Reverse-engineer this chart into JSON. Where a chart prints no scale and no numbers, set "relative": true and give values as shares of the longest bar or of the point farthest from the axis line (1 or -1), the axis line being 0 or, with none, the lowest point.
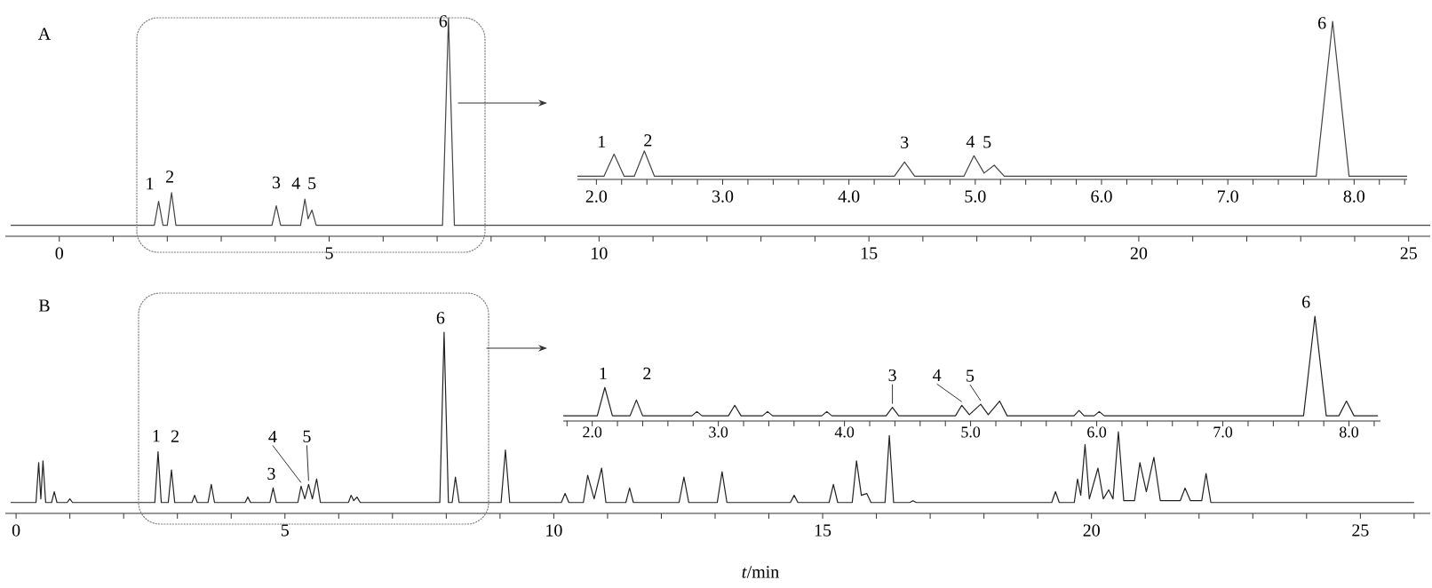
{
  "chart_data": [
    {
      "type": "line",
      "title": "A",
      "relative": true,
      "color": "#444444",
      "xlim": [
        -1,
        25.4
      ],
      "xticks": [
        0,
        {
          "value": 1,
          "label": null
        },
        {
          "value": 2,
          "label": null
        },
        {
          "value": 3,
          "label": null
        },
        {
          "value": 4,
          "label": null
        },
        5,
        {
          "value": 6,
          "label": null
        },
        {
          "value": 7,
          "label": null
        },
        {
          "value": 8,
          "label": null
        },
        {
          "value": 9,
          "label": null
        },
        10,
        {
          "value": 11,
          "label": null
        },
        {
          "value": 12,
          "label": null
        },
        {
          "value": 13,
          "label": null
        },
        {
          "value": 14,
          "label": null
        },
        15,
        {
          "value": 16,
          "label": null
        },
        {
          "value": 17,
          "label": null
        },
        {
          "value": 18,
          "label": null
        },
        {
          "value": 19,
          "label": null
        },
        20,
        {
          "value": 21,
          "label": null
        },
        {
          "value": 22,
          "label": null
        },
        {
          "value": 23,
          "label": null
        },
        {
          "value": 24,
          "label": null
        },
        25
      ],
      "x": [
        -0.9,
        1.76,
        1.84,
        1.92,
        2.0,
        2.08,
        2.16,
        3.94,
        4.02,
        4.1,
        4.47,
        4.55,
        4.61,
        4.68,
        4.76,
        7.1,
        7.21,
        7.32,
        25.4
      ],
      "values": [
        0.05,
        0.05,
        0.16,
        0.05,
        0.05,
        0.2,
        0.05,
        0.05,
        0.14,
        0.05,
        0.05,
        0.17,
        0.08,
        0.12,
        0.05,
        0.05,
        1.0,
        0.05,
        0.05
      ],
      "annotations": [
        {
          "text": "1",
          "x": 1.84,
          "y": 0.16
        },
        {
          "text": "2",
          "x": 2.08,
          "y": 0.2
        },
        {
          "text": "3",
          "x": 4.02,
          "y": 0.14
        },
        {
          "text": "4",
          "x": 4.55,
          "y": 0.17
        },
        {
          "text": "5",
          "x": 4.68,
          "y": 0.12
        },
        {
          "text": "6",
          "x": 7.21,
          "y": 1.0
        }
      ]
    },
    {
      "type": "line",
      "relative": true,
      "color": "#444444",
      "xlim": [
        1.85,
        8.42
      ],
      "xticks": [
        {
          "value": 2.0,
          "label": "2.0"
        },
        {
          "value": 2.2,
          "label": null
        },
        {
          "value": 2.4,
          "label": null
        },
        {
          "value": 2.6,
          "label": null
        },
        {
          "value": 2.8,
          "label": null
        },
        {
          "value": 3.0,
          "label": "3.0"
        },
        {
          "value": 3.2,
          "label": null
        },
        {
          "value": 3.4,
          "label": null
        },
        {
          "value": 3.6,
          "label": null
        },
        {
          "value": 3.8,
          "label": null
        },
        {
          "value": 4.0,
          "label": "4.0"
        },
        {
          "value": 4.2,
          "label": null
        },
        {
          "value": 4.4,
          "label": null
        },
        {
          "value": 4.6,
          "label": null
        },
        {
          "value": 4.8,
          "label": null
        },
        {
          "value": 5.0,
          "label": "5.0"
        },
        {
          "value": 5.2,
          "label": null
        },
        {
          "value": 5.4,
          "label": null
        },
        {
          "value": 5.6,
          "label": null
        },
        {
          "value": 5.8,
          "label": null
        },
        {
          "value": 6.0,
          "label": "6.0"
        },
        {
          "value": 6.2,
          "label": null
        },
        {
          "value": 6.4,
          "label": null
        },
        {
          "value": 6.6,
          "label": null
        },
        {
          "value": 6.8,
          "label": null
        },
        {
          "value": 7.0,
          "label": "7.0"
        },
        {
          "value": 7.2,
          "label": null
        },
        {
          "value": 7.4,
          "label": null
        },
        {
          "value": 7.6,
          "label": null
        },
        {
          "value": 7.8,
          "label": null
        },
        {
          "value": 8.0,
          "label": "8.0"
        },
        {
          "value": 8.2,
          "label": null
        },
        {
          "value": 8.4,
          "label": null
        }
      ],
      "x": [
        1.85,
        2.06,
        2.14,
        2.22,
        2.3,
        2.38,
        2.46,
        4.36,
        4.44,
        4.52,
        4.91,
        4.99,
        5.07,
        5.15,
        5.23,
        7.7,
        7.83,
        7.96,
        8.42
      ],
      "values": [
        0.02,
        0.02,
        0.16,
        0.02,
        0.02,
        0.18,
        0.02,
        0.02,
        0.11,
        0.02,
        0.02,
        0.15,
        0.04,
        0.09,
        0.02,
        0.02,
        1.0,
        0.02,
        0.02
      ],
      "annotations": [
        {
          "text": "1",
          "x": 2.14,
          "y": 0.16
        },
        {
          "text": "2",
          "x": 2.38,
          "y": 0.18
        },
        {
          "text": "3",
          "x": 4.44,
          "y": 0.11
        },
        {
          "text": "4",
          "x": 4.99,
          "y": 0.15
        },
        {
          "text": "5",
          "x": 5.15,
          "y": 0.09
        },
        {
          "text": "6",
          "x": 7.83,
          "y": 1.0
        }
      ]
    },
    {
      "type": "line",
      "title": "B",
      "xlabel": "*t*/min",
      "relative": true,
      "color": "#222222",
      "xlim": [
        -0.2,
        26.3
      ],
      "xticks": [
        0,
        {
          "value": 1,
          "label": null
        },
        {
          "value": 2,
          "label": null
        },
        {
          "value": 3,
          "label": null
        },
        {
          "value": 4,
          "label": null
        },
        5,
        {
          "value": 6,
          "label": null
        },
        {
          "value": 7,
          "label": null
        },
        {
          "value": 8,
          "label": null
        },
        {
          "value": 9,
          "label": null
        },
        10,
        {
          "value": 11,
          "label": null
        },
        {
          "value": 12,
          "label": null
        },
        {
          "value": 13,
          "label": null
        },
        {
          "value": 14,
          "label": null
        },
        15,
        {
          "value": 16,
          "label": null
        },
        {
          "value": 17,
          "label": null
        },
        {
          "value": 18,
          "label": null
        },
        {
          "value": 19,
          "label": null
        },
        20,
        {
          "value": 21,
          "label": null
        },
        {
          "value": 22,
          "label": null
        },
        {
          "value": 23,
          "label": null
        },
        {
          "value": 24,
          "label": null
        },
        25,
        {
          "value": 26,
          "label": null
        }
      ],
      "x": [
        -0.1,
        0.37,
        0.42,
        0.46,
        0.5,
        0.55,
        0.66,
        0.71,
        0.76,
        0.95,
        1.0,
        1.05,
        2.58,
        2.64,
        2.7,
        2.83,
        2.89,
        2.95,
        3.27,
        3.32,
        3.37,
        3.57,
        3.63,
        3.69,
        4.26,
        4.31,
        4.36,
        4.72,
        4.78,
        4.84,
        5.24,
        5.3,
        5.37,
        5.44,
        5.51,
        5.59,
        5.66,
        6.18,
        6.23,
        6.28,
        6.34,
        6.4,
        7.88,
        7.96,
        8.04,
        8.11,
        8.17,
        8.24,
        9.02,
        9.1,
        9.18,
        10.14,
        10.21,
        10.28,
        10.55,
        10.63,
        10.75,
        10.89,
        10.97,
        11.34,
        11.41,
        11.48,
        12.33,
        12.42,
        12.51,
        13.04,
        13.13,
        13.22,
        14.4,
        14.47,
        14.54,
        15.12,
        15.2,
        15.28,
        15.55,
        15.63,
        15.72,
        15.82,
        15.9,
        16.16,
        16.24,
        16.32,
        16.62,
        16.68,
        16.74,
        19.26,
        19.33,
        19.4,
        19.68,
        19.74,
        19.8,
        19.88,
        19.96,
        20.12,
        20.22,
        20.32,
        20.4,
        20.5,
        20.6,
        20.8,
        20.9,
        21.02,
        21.16,
        21.28,
        21.65,
        21.74,
        21.84,
        22.05,
        22.13,
        22.22,
        26.0
      ],
      "values": [
        0.06,
        0.06,
        0.28,
        0.08,
        0.29,
        0.06,
        0.06,
        0.12,
        0.06,
        0.06,
        0.08,
        0.06,
        0.06,
        0.34,
        0.06,
        0.06,
        0.24,
        0.06,
        0.06,
        0.1,
        0.06,
        0.06,
        0.16,
        0.06,
        0.06,
        0.09,
        0.06,
        0.06,
        0.14,
        0.06,
        0.06,
        0.15,
        0.08,
        0.16,
        0.08,
        0.19,
        0.06,
        0.06,
        0.1,
        0.07,
        0.09,
        0.06,
        0.06,
        1.0,
        0.06,
        0.06,
        0.2,
        0.06,
        0.06,
        0.35,
        0.06,
        0.06,
        0.11,
        0.06,
        0.06,
        0.21,
        0.08,
        0.25,
        0.06,
        0.06,
        0.14,
        0.06,
        0.06,
        0.2,
        0.06,
        0.06,
        0.23,
        0.06,
        0.06,
        0.1,
        0.06,
        0.06,
        0.16,
        0.06,
        0.06,
        0.29,
        0.1,
        0.11,
        0.06,
        0.06,
        0.43,
        0.06,
        0.06,
        0.07,
        0.06,
        0.06,
        0.12,
        0.06,
        0.06,
        0.19,
        0.1,
        0.38,
        0.08,
        0.25,
        0.08,
        0.13,
        0.08,
        0.45,
        0.07,
        0.07,
        0.28,
        0.12,
        0.31,
        0.07,
        0.07,
        0.14,
        0.07,
        0.07,
        0.22,
        0.06,
        0.06
      ],
      "annotations": [
        {
          "text": "1",
          "x": 2.64,
          "y": 0.34
        },
        {
          "text": "2",
          "x": 2.89,
          "y": 0.24
        },
        {
          "text": "3",
          "x": 4.78,
          "y": 0.14
        },
        {
          "text": "4",
          "x": 5.3,
          "y": 0.15
        },
        {
          "text": "5",
          "x": 5.44,
          "y": 0.16
        },
        {
          "text": "6",
          "x": 7.96,
          "y": 1.0
        }
      ]
    },
    {
      "type": "line",
      "relative": true,
      "color": "#222222",
      "xlim": [
        1.77,
        8.25
      ],
      "xticks": [
        {
          "value": 1.8,
          "label": null
        },
        {
          "value": 2.0,
          "label": "2.0"
        },
        {
          "value": 2.2,
          "label": null
        },
        {
          "value": 2.4,
          "label": null
        },
        {
          "value": 2.6,
          "label": null
        },
        {
          "value": 2.8,
          "label": null
        },
        {
          "value": 3.0,
          "label": "3.0"
        },
        {
          "value": 3.2,
          "label": null
        },
        {
          "value": 3.4,
          "label": null
        },
        {
          "value": 3.6,
          "label": null
        },
        {
          "value": 3.8,
          "label": null
        },
        {
          "value": 4.0,
          "label": "4.0"
        },
        {
          "value": 4.2,
          "label": null
        },
        {
          "value": 4.4,
          "label": null
        },
        {
          "value": 4.6,
          "label": null
        },
        {
          "value": 4.8,
          "label": null
        },
        {
          "value": 5.0,
          "label": "5.0"
        },
        {
          "value": 5.2,
          "label": null
        },
        {
          "value": 5.4,
          "label": null
        },
        {
          "value": 5.6,
          "label": null
        },
        {
          "value": 5.8,
          "label": null
        },
        {
          "value": 6.0,
          "label": "6.0"
        },
        {
          "value": 6.2,
          "label": null
        },
        {
          "value": 6.4,
          "label": null
        },
        {
          "value": 6.6,
          "label": null
        },
        {
          "value": 6.8,
          "label": null
        },
        {
          "value": 7.0,
          "label": "7.0"
        },
        {
          "value": 7.2,
          "label": null
        },
        {
          "value": 7.4,
          "label": null
        },
        {
          "value": 7.6,
          "label": null
        },
        {
          "value": 7.8,
          "label": null
        },
        {
          "value": 8.0,
          "label": "8.0"
        },
        {
          "value": 8.2,
          "label": null
        }
      ],
      "x": [
        1.77,
        2.04,
        2.1,
        2.16,
        2.3,
        2.35,
        2.4,
        2.79,
        2.83,
        2.87,
        3.08,
        3.13,
        3.18,
        3.35,
        3.39,
        3.43,
        3.82,
        3.86,
        3.9,
        4.33,
        4.38,
        4.43,
        4.88,
        4.93,
        4.99,
        5.08,
        5.14,
        5.23,
        5.29,
        5.82,
        5.86,
        5.9,
        5.98,
        6.02,
        6.06,
        7.64,
        7.73,
        7.82,
        7.92,
        7.98,
        8.04,
        8.23
      ],
      "values": [
        0.05,
        0.05,
        0.32,
        0.05,
        0.05,
        0.2,
        0.05,
        0.05,
        0.09,
        0.05,
        0.05,
        0.15,
        0.05,
        0.05,
        0.09,
        0.05,
        0.05,
        0.09,
        0.05,
        0.05,
        0.13,
        0.05,
        0.05,
        0.15,
        0.06,
        0.16,
        0.06,
        0.19,
        0.05,
        0.05,
        0.1,
        0.05,
        0.05,
        0.09,
        0.05,
        0.05,
        1.0,
        0.05,
        0.05,
        0.19,
        0.05,
        0.05
      ],
      "annotations": [
        {
          "text": "1",
          "x": 2.1,
          "y": 0.32
        },
        {
          "text": "2",
          "x": 2.35,
          "y": 0.2
        },
        {
          "text": "3",
          "x": 4.38,
          "y": 0.13
        },
        {
          "text": "4",
          "x": 4.93,
          "y": 0.15
        },
        {
          "text": "5",
          "x": 5.08,
          "y": 0.16
        },
        {
          "text": "6",
          "x": 7.73,
          "y": 1.0
        }
      ]
    }
  ]
}
